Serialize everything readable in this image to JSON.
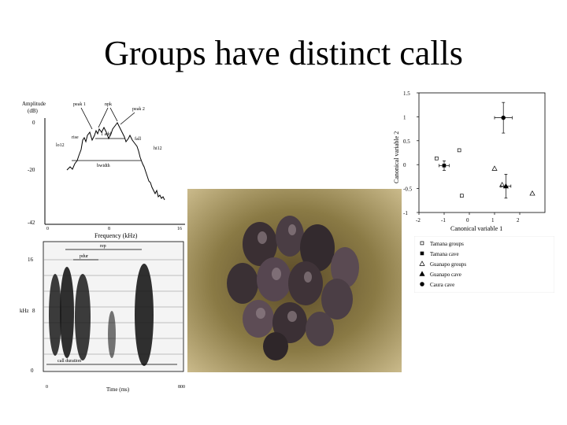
{
  "slide": {
    "title": "Groups have distinct calls"
  },
  "amplitude_panel": {
    "ylabel_line1": "Amplitude",
    "ylabel_line2": "(dB)",
    "yticks": [
      "0",
      "-20",
      "-42"
    ],
    "xticks": [
      "0",
      "8",
      "16"
    ],
    "xlabel": "Frequency (kHz)",
    "annotations": {
      "peak1": "peak 1",
      "npk": "npk",
      "peak2": "peak 2",
      "rise": "rise",
      "fall": "fall",
      "add": "1 add",
      "lo12": "lo12",
      "hi12": "hi12",
      "bwidth": "bwidth"
    }
  },
  "spectrogram_panel": {
    "ylabel": "kHz",
    "yticks": [
      "16",
      "8",
      "0"
    ],
    "xticks": [
      "0",
      "800"
    ],
    "xlabel": "Time (ms)",
    "annotations": {
      "rep": "rep",
      "pdur": "pdur",
      "call_duration": "call duration"
    }
  },
  "chart_data": {
    "type": "scatter",
    "xlabel": "Canonical variable 1",
    "ylabel": "Canonical variable 2",
    "xlim": [
      -2,
      3
    ],
    "ylim": [
      -1,
      1.5
    ],
    "xticks": [
      "-2",
      "-1",
      "0",
      "1",
      "2"
    ],
    "yticks": [
      "1.5",
      "1",
      "0.5",
      "0",
      "-0.5",
      "-1"
    ],
    "series": [
      {
        "name": "Tamana groups",
        "marker": "open-square",
        "points": [
          [
            -1.3,
            0.13
          ],
          [
            -0.4,
            0.3
          ],
          [
            -0.3,
            -0.65
          ]
        ]
      },
      {
        "name": "Tamana cave",
        "marker": "filled-square",
        "points": [
          [
            -1.0,
            -0.02
          ]
        ],
        "xerr": 0.2,
        "yerr": 0.1
      },
      {
        "name": "Guanapo groups",
        "marker": "open-triangle",
        "points": [
          [
            1.0,
            -0.08
          ],
          [
            1.3,
            -0.42
          ],
          [
            2.5,
            -0.6
          ]
        ]
      },
      {
        "name": "Guanapo cave",
        "marker": "filled-triangle",
        "points": [
          [
            1.45,
            -0.45
          ]
        ],
        "xerr": 0.2,
        "yerr": 0.25
      },
      {
        "name": "Caura cave",
        "marker": "filled-circle",
        "points": [
          [
            1.35,
            0.98
          ]
        ],
        "xerr": 0.35,
        "yerr": 0.32
      }
    ]
  },
  "photo": {
    "icon": "bat-cluster-photo"
  }
}
